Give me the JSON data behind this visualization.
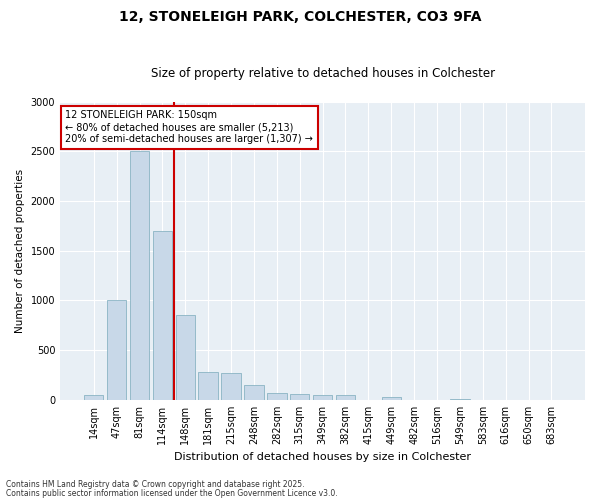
{
  "title_line1": "12, STONELEIGH PARK, COLCHESTER, CO3 9FA",
  "title_line2": "Size of property relative to detached houses in Colchester",
  "xlabel": "Distribution of detached houses by size in Colchester",
  "ylabel": "Number of detached properties",
  "categories": [
    "14sqm",
    "47sqm",
    "81sqm",
    "114sqm",
    "148sqm",
    "181sqm",
    "215sqm",
    "248sqm",
    "282sqm",
    "315sqm",
    "349sqm",
    "382sqm",
    "415sqm",
    "449sqm",
    "482sqm",
    "516sqm",
    "549sqm",
    "583sqm",
    "616sqm",
    "650sqm",
    "683sqm"
  ],
  "values": [
    50,
    1000,
    2500,
    1700,
    850,
    280,
    270,
    150,
    70,
    55,
    45,
    50,
    0,
    25,
    0,
    0,
    5,
    0,
    0,
    0,
    0
  ],
  "bar_color": "#c8d8e8",
  "bar_edge_color": "#7aaabb",
  "highlight_line_color": "#cc0000",
  "red_line_x": 3.5,
  "annotation_text": "12 STONELEIGH PARK: 150sqm\n← 80% of detached houses are smaller (5,213)\n20% of semi-detached houses are larger (1,307) →",
  "annotation_box_facecolor": "#ffffff",
  "annotation_box_edgecolor": "#cc0000",
  "ylim": [
    0,
    3000
  ],
  "yticks": [
    0,
    500,
    1000,
    1500,
    2000,
    2500,
    3000
  ],
  "bg_color": "#ffffff",
  "plot_bg_color": "#e8eff5",
  "grid_color": "#ffffff",
  "footer_line1": "Contains HM Land Registry data © Crown copyright and database right 2025.",
  "footer_line2": "Contains public sector information licensed under the Open Government Licence v3.0.",
  "title1_fontsize": 10,
  "title2_fontsize": 8.5,
  "ylabel_fontsize": 7.5,
  "xlabel_fontsize": 8,
  "tick_fontsize": 7,
  "footer_fontsize": 5.5,
  "annotation_fontsize": 7
}
